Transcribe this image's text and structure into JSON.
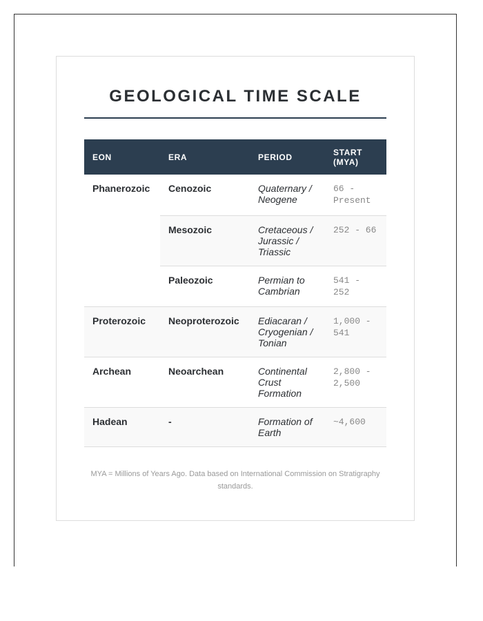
{
  "title": "GEOLOGICAL TIME SCALE",
  "table": {
    "headers": [
      "EON",
      "ERA",
      "PERIOD",
      "START (MYA)"
    ],
    "rows": [
      {
        "eon": "Phanerozoic",
        "era": "Cenozoic",
        "period": "Quaternary / Neogene",
        "start": "66 - Present"
      },
      {
        "eon": "",
        "era": "Mesozoic",
        "period": "Cretaceous / Jurassic / Triassic",
        "start": "252 - 66"
      },
      {
        "eon": "",
        "era": "Paleozoic",
        "period": "Permian to Cambrian",
        "start": "541 - 252"
      },
      {
        "eon": "Proterozoic",
        "era": "Neoproterozoic",
        "period": "Ediacaran / Cryogenian / Tonian",
        "start": "1,000 - 541"
      },
      {
        "eon": "Archean",
        "era": "Neoarchean",
        "period": "Continental Crust Formation",
        "start": "2,800 - 2,500"
      },
      {
        "eon": "Hadean",
        "era": "-",
        "period": "Formation of Earth",
        "start": "~4,600"
      }
    ]
  },
  "footnote": "MYA = Millions of Years Ago. Data based on International Commission on Stratigraphy standards.",
  "colors": {
    "header_bg": "#2c3e50",
    "stripe": "#f9f9f9"
  }
}
